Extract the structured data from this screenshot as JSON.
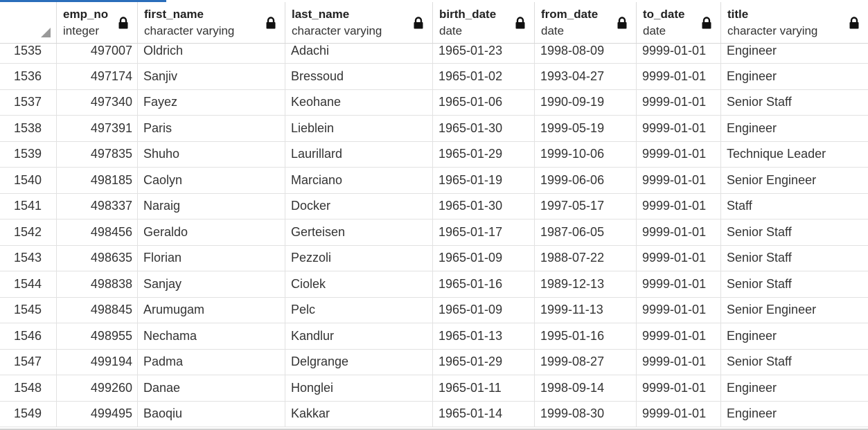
{
  "columns": [
    {
      "name": "emp_no",
      "type": "integer"
    },
    {
      "name": "first_name",
      "type": "character varying"
    },
    {
      "name": "last_name",
      "type": "character varying"
    },
    {
      "name": "birth_date",
      "type": "date"
    },
    {
      "name": "from_date",
      "type": "date"
    },
    {
      "name": "to_date",
      "type": "date"
    },
    {
      "name": "title",
      "type": "character varying"
    }
  ],
  "rows": [
    [
      "1535",
      "497007",
      "Oldrich",
      "Adachi",
      "1965-01-23",
      "1998-08-09",
      "9999-01-01",
      "Engineer"
    ],
    [
      "1536",
      "497174",
      "Sanjiv",
      "Bressoud",
      "1965-01-02",
      "1993-04-27",
      "9999-01-01",
      "Engineer"
    ],
    [
      "1537",
      "497340",
      "Fayez",
      "Keohane",
      "1965-01-06",
      "1990-09-19",
      "9999-01-01",
      "Senior Staff"
    ],
    [
      "1538",
      "497391",
      "Paris",
      "Lieblein",
      "1965-01-30",
      "1999-05-19",
      "9999-01-01",
      "Engineer"
    ],
    [
      "1539",
      "497835",
      "Shuho",
      "Laurillard",
      "1965-01-29",
      "1999-10-06",
      "9999-01-01",
      "Technique Leader"
    ],
    [
      "1540",
      "498185",
      "Caolyn",
      "Marciano",
      "1965-01-19",
      "1999-06-06",
      "9999-01-01",
      "Senior Engineer"
    ],
    [
      "1541",
      "498337",
      "Naraig",
      "Docker",
      "1965-01-30",
      "1997-05-17",
      "9999-01-01",
      "Staff"
    ],
    [
      "1542",
      "498456",
      "Geraldo",
      "Gerteisen",
      "1965-01-17",
      "1987-06-05",
      "9999-01-01",
      "Senior Staff"
    ],
    [
      "1543",
      "498635",
      "Florian",
      "Pezzoli",
      "1965-01-09",
      "1988-07-22",
      "9999-01-01",
      "Senior Staff"
    ],
    [
      "1544",
      "498838",
      "Sanjay",
      "Ciolek",
      "1965-01-16",
      "1989-12-13",
      "9999-01-01",
      "Senior Staff"
    ],
    [
      "1545",
      "498845",
      "Arumugam",
      "Pelc",
      "1965-01-09",
      "1999-11-13",
      "9999-01-01",
      "Senior Engineer"
    ],
    [
      "1546",
      "498955",
      "Nechama",
      "Kandlur",
      "1965-01-13",
      "1995-01-16",
      "9999-01-01",
      "Engineer"
    ],
    [
      "1547",
      "499194",
      "Padma",
      "Delgrange",
      "1965-01-29",
      "1999-08-27",
      "9999-01-01",
      "Senior Staff"
    ],
    [
      "1548",
      "499260",
      "Danae",
      "Honglei",
      "1965-01-11",
      "1998-09-14",
      "9999-01-01",
      "Engineer"
    ],
    [
      "1549",
      "499495",
      "Baoqiu",
      "Kakkar",
      "1965-01-14",
      "1999-08-30",
      "9999-01-01",
      "Engineer"
    ]
  ],
  "icons": {
    "lock": "lock-icon",
    "corner": "select-all-corner"
  },
  "colors": {
    "accent": "#2a6ebb",
    "grid_line": "#e2e2e2",
    "text": "#333333"
  }
}
